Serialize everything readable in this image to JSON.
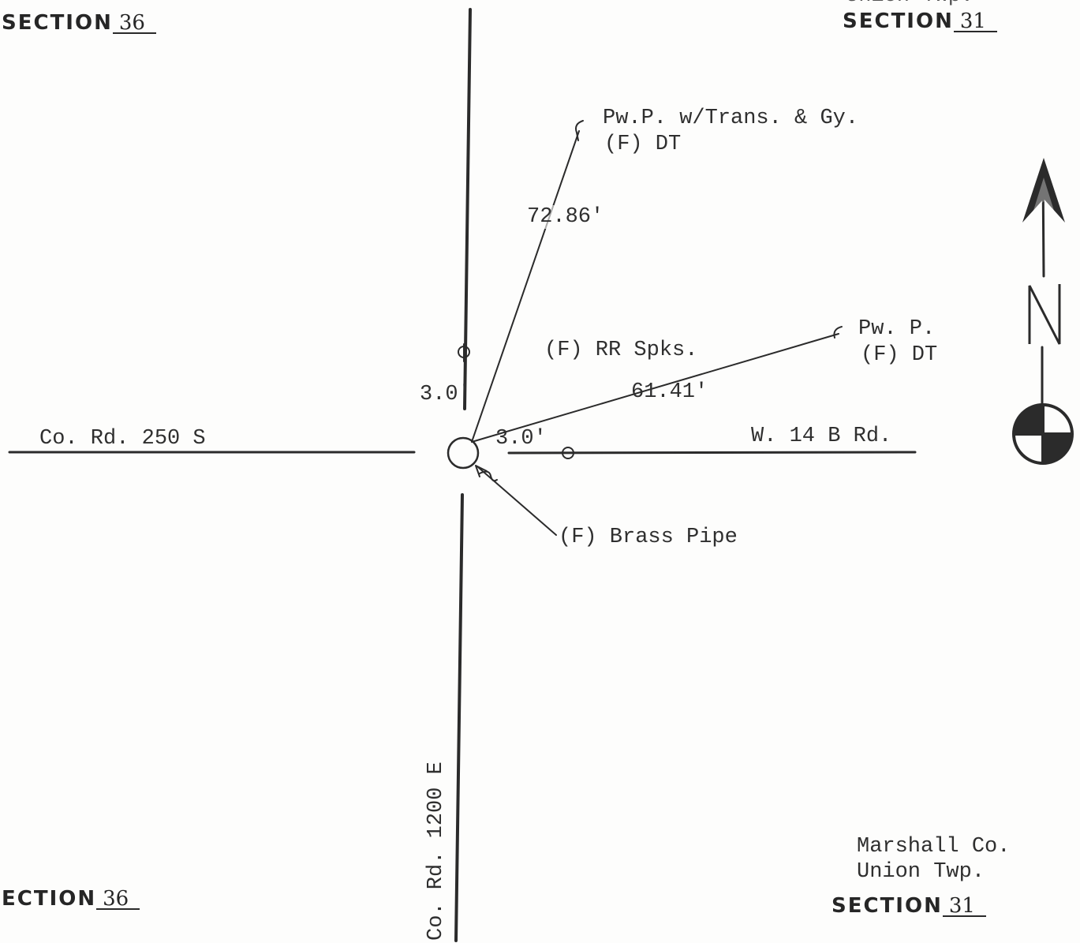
{
  "sections": {
    "top_left": {
      "label": "SECTION",
      "number": "36"
    },
    "top_right": {
      "above_cut": "Union Twp.",
      "label": "SECTION",
      "number": "31"
    },
    "bottom_left": {
      "label": "ECTION",
      "number": "36"
    },
    "bottom_right": {
      "county": "Marshall Co.",
      "township": "Union Twp.",
      "label": "SECTION",
      "number": "31"
    }
  },
  "roads": {
    "west": "Co. Rd. 250 S",
    "east": "W. 14 B Rd.",
    "south": "Co. Rd. 1200 E"
  },
  "witnesses": {
    "north_pole_line1": "Pw.P. w/Trans. & Gy.",
    "north_pole_line2": "(F) DT",
    "north_pole_distance": "72.86'",
    "east_pole_line1": "Pw. P.",
    "east_pole_line2": "(F) DT",
    "east_pole_distance": "61.41'",
    "rr_spikes": "(F) RR Spks.",
    "offset_north": "3.0'",
    "offset_east": "3.0'",
    "brass_pipe": "(F) Brass Pipe"
  },
  "north_arrow": {
    "letter": "N"
  }
}
